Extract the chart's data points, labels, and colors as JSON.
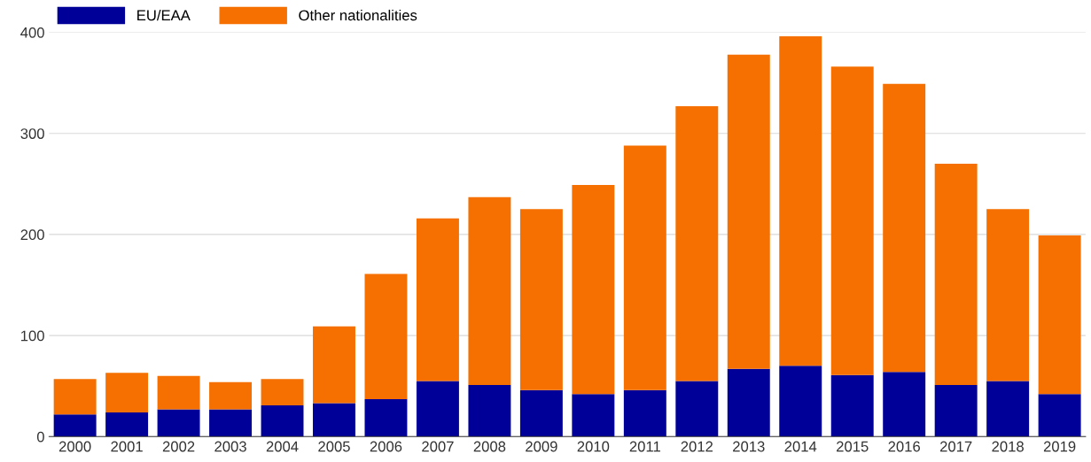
{
  "chart_data": {
    "type": "bar",
    "stacked": true,
    "categories": [
      "2000",
      "2001",
      "2002",
      "2003",
      "2004",
      "2005",
      "2006",
      "2007",
      "2008",
      "2009",
      "2010",
      "2011",
      "2012",
      "2013",
      "2014",
      "2015",
      "2016",
      "2017",
      "2018",
      "2019"
    ],
    "series": [
      {
        "name": "EU/EAA",
        "color": "#000099",
        "values": [
          22,
          24,
          27,
          27,
          31,
          33,
          37,
          55,
          51,
          46,
          42,
          46,
          55,
          67,
          70,
          61,
          64,
          51,
          55,
          42
        ]
      },
      {
        "name": "Other nationalities",
        "color": "#f57000",
        "values": [
          35,
          39,
          33,
          27,
          26,
          76,
          124,
          161,
          186,
          179,
          207,
          242,
          272,
          311,
          326,
          305,
          285,
          219,
          170,
          157
        ]
      }
    ],
    "ylim": [
      0,
      400
    ],
    "yticks": [
      0,
      100,
      200,
      300,
      400
    ],
    "grid": "y",
    "legend": "top left"
  }
}
